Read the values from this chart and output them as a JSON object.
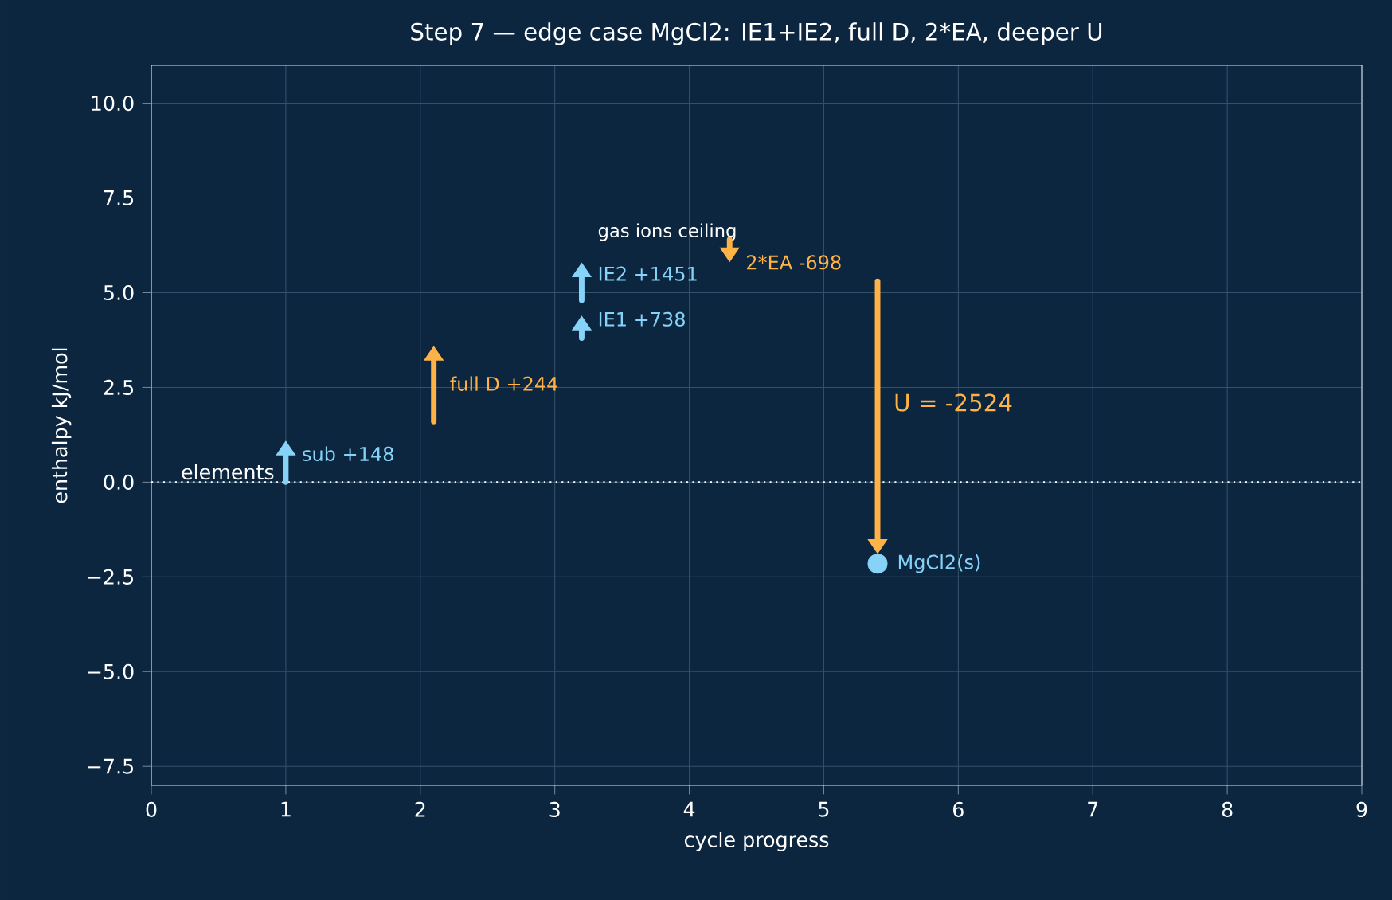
{
  "chart_data": {
    "type": "scatter",
    "title": "Step 7 — edge case MgCl2: IE1+IE2, full D, 2*EA, deeper U",
    "xlabel": "cycle progress",
    "ylabel": "enthalpy  kJ/mol",
    "xlim": [
      0,
      9
    ],
    "ylim": [
      -8,
      11
    ],
    "xticks": [
      0,
      1,
      2,
      3,
      4,
      5,
      6,
      7,
      8,
      9
    ],
    "yticks": [
      {
        "value": -7.5,
        "label": "−7.5"
      },
      {
        "value": -5,
        "label": "−5.0"
      },
      {
        "value": -2.5,
        "label": "−2.5"
      },
      {
        "value": 0,
        "label": "0.0"
      },
      {
        "value": 2.5,
        "label": "2.5"
      },
      {
        "value": 5,
        "label": "5.0"
      },
      {
        "value": 7.5,
        "label": "7.5"
      },
      {
        "value": 10,
        "label": "10.0"
      }
    ],
    "grid": true,
    "series": [
      {
        "color": "#87d3f8",
        "marker": "circle",
        "x": [
          5.4
        ],
        "values": [
          -2.15
        ]
      }
    ],
    "ref_lines": [
      {
        "axis": "y",
        "value": 0,
        "label": "elements",
        "color": "#ffffff",
        "line_style": "dotted"
      }
    ],
    "annotations": [
      "sub +148",
      "full D +244",
      "IE1 +738",
      "IE2 +1451",
      "2*EA -698",
      "U = -2524",
      "gas ions ceiling",
      {
        "text": "MgCl2(s)",
        "x": 5.4,
        "y": -2.15
      }
    ]
  }
}
